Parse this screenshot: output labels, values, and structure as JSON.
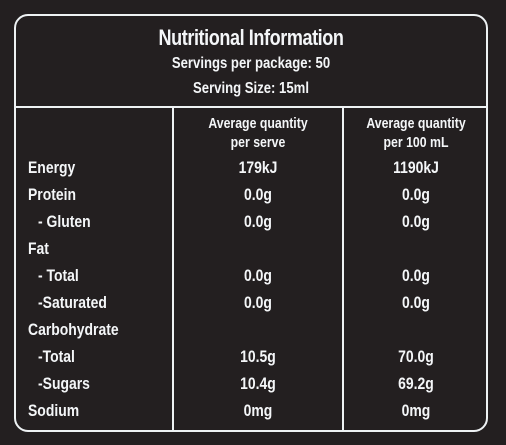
{
  "header": {
    "title": "Nutritional Information",
    "servings_per_package": "Servings per package: 50",
    "serving_size": "Serving Size: 15ml"
  },
  "columns": {
    "per_serve_line1": "Average quantity",
    "per_serve_line2": "per serve",
    "per_100_line1": "Average quantity",
    "per_100_line2": "per 100 mL"
  },
  "rows": [
    {
      "label": "Energy",
      "per_serve": "179kJ",
      "per_100": "1190kJ"
    },
    {
      "label": "Protein",
      "per_serve": "0.0g",
      "per_100": "0.0g"
    },
    {
      "label": "- Gluten",
      "per_serve": "0.0g",
      "per_100": "0.0g"
    },
    {
      "label": "Fat",
      "per_serve": "",
      "per_100": ""
    },
    {
      "label": "- Total",
      "per_serve": "0.0g",
      "per_100": "0.0g"
    },
    {
      "label": "-Saturated",
      "per_serve": "0.0g",
      "per_100": "0.0g"
    },
    {
      "label": "Carbohydrate",
      "per_serve": "",
      "per_100": ""
    },
    {
      "label": "-Total",
      "per_serve": "10.5g",
      "per_100": "70.0g"
    },
    {
      "label": "-Sugars",
      "per_serve": "10.4g",
      "per_100": "69.2g"
    },
    {
      "label": "Sodium",
      "per_serve": "0mg",
      "per_100": "0mg"
    }
  ]
}
